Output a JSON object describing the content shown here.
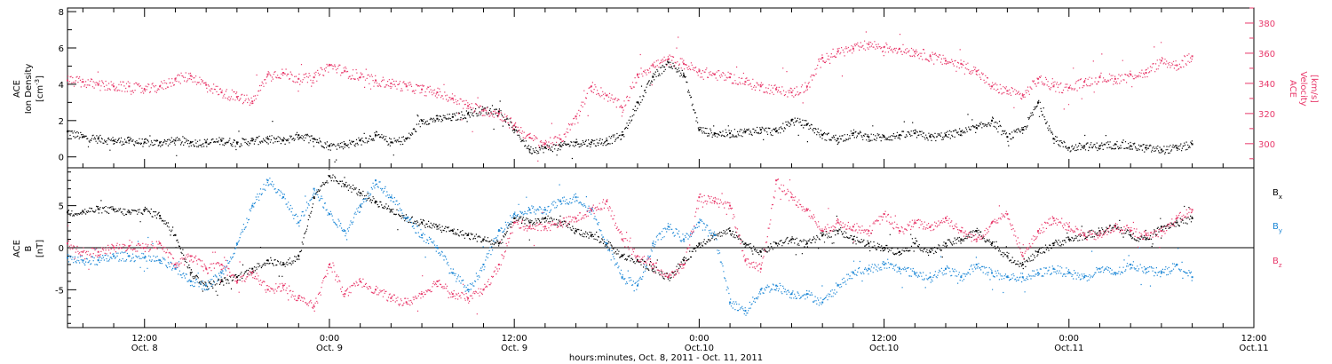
{
  "xlabel": "hours:minutes, Oct. 8, 2011 - Oct. 11, 2011",
  "x_ticks": [
    {
      "hour": 12,
      "line1": "12:00",
      "line2": "Oct. 8"
    },
    {
      "hour": 24,
      "line1": "0:00",
      "line2": "Oct. 9"
    },
    {
      "hour": 36,
      "line1": "12:00",
      "line2": "Oct. 9"
    },
    {
      "hour": 48,
      "line1": "0:00",
      "line2": "Oct.10"
    },
    {
      "hour": 60,
      "line1": "12:00",
      "line2": "Oct.10"
    },
    {
      "hour": 72,
      "line1": "0:00",
      "line2": "Oct.11"
    },
    {
      "hour": 84,
      "line1": "12:00",
      "line2": "Oct.11"
    }
  ],
  "colors": {
    "black": "#000000",
    "pink": "#e8386a",
    "blue": "#1a86d6"
  },
  "panels": {
    "top": {
      "left_label_line1": "ACE",
      "left_label_line2": "Ion Density",
      "left_unit": "[cm",
      "left_unit_sup": "-3",
      "left_unit_end": "]",
      "right_label_line1": "ACE",
      "right_label_line2": "Velocity",
      "right_unit": "[km/s]"
    },
    "bottom": {
      "left_label_line1": "ACE",
      "left_label_line2": "B",
      "left_unit": "[nT]",
      "legend": [
        {
          "name": "B",
          "sub": "x",
          "color": "#000000"
        },
        {
          "name": "B",
          "sub": "y",
          "color": "#1a86d6"
        },
        {
          "name": "B",
          "sub": "z",
          "color": "#e8386a"
        }
      ]
    }
  },
  "chart_data": [
    {
      "type": "scatter",
      "title": "",
      "xlabel": "hours:minutes, Oct. 8, 2011 - Oct. 11, 2011",
      "ylabel": "ACE Ion Density [cm-3]",
      "xlim": [
        7,
        84
      ],
      "ylim": [
        -0.6,
        8.2
      ],
      "y_ticks": [
        0,
        2,
        4,
        6,
        8
      ],
      "y2label": "ACE Velocity [km/s]",
      "y2lim": [
        284,
        390
      ],
      "y2_ticks": [
        300,
        320,
        340,
        360,
        380
      ],
      "series": [
        {
          "name": "",
          "axis": "left",
          "color": "#000000",
          "x": [
            7.0,
            8.0,
            9.0,
            10.0,
            11.0,
            12.0,
            13.0,
            14.0,
            15.0,
            16.0,
            17.0,
            18.0,
            19.0,
            20.0,
            21.0,
            22.0,
            23.0,
            24.0,
            25.0,
            26.0,
            27.0,
            28.0,
            29.0,
            30.0,
            31.0,
            32.0,
            33.0,
            34.0,
            35.0,
            36.0,
            37.0,
            38.0,
            39.0,
            40.0,
            41.0,
            42.0,
            43.0,
            44.0,
            45.0,
            46.0,
            47.0,
            48.0,
            49.0,
            50.0,
            51.0,
            52.0,
            53.0,
            54.0,
            55.0,
            56.0,
            57.0,
            58.0,
            59.0,
            60.0,
            61.0,
            62.0,
            63.0,
            64.0,
            65.0,
            66.0,
            67.0,
            68.0,
            69.0,
            70.0,
            71.0,
            72.0,
            73.0,
            74.0,
            75.0,
            76.0,
            77.0,
            78.0,
            79.0,
            80.0
          ],
          "y": [
            1.4,
            1.1,
            1.0,
            0.9,
            0.9,
            0.8,
            0.8,
            0.9,
            0.8,
            0.8,
            0.9,
            0.8,
            0.9,
            1.0,
            0.9,
            1.2,
            1.0,
            0.6,
            0.7,
            0.9,
            1.2,
            0.8,
            1.0,
            2.0,
            2.1,
            2.2,
            2.4,
            2.6,
            2.5,
            1.5,
            0.4,
            0.5,
            0.6,
            0.8,
            0.8,
            0.9,
            1.2,
            3.0,
            4.4,
            5.2,
            4.5,
            1.5,
            1.3,
            1.3,
            1.4,
            1.5,
            1.4,
            2.0,
            1.8,
            1.2,
            1.0,
            1.3,
            1.1,
            1.1,
            1.2,
            1.3,
            1.1,
            1.2,
            1.4,
            1.6,
            2.0,
            1.1,
            1.5,
            3.0,
            1.0,
            0.5,
            0.6,
            0.6,
            0.7,
            0.6,
            0.5,
            0.4,
            0.5,
            0.7
          ]
        },
        {
          "name": "",
          "axis": "right",
          "color": "#e8386a",
          "x": [
            7.0,
            8.0,
            9.0,
            10.0,
            11.0,
            12.0,
            13.0,
            14.0,
            15.0,
            16.0,
            17.0,
            18.0,
            19.0,
            20.0,
            21.0,
            22.0,
            23.0,
            24.0,
            25.0,
            26.0,
            27.0,
            28.0,
            29.0,
            30.0,
            31.0,
            32.0,
            33.0,
            34.0,
            35.0,
            36.0,
            37.0,
            38.0,
            39.0,
            40.0,
            41.0,
            42.0,
            43.0,
            44.0,
            45.0,
            46.0,
            47.0,
            48.0,
            49.0,
            50.0,
            51.0,
            52.0,
            53.0,
            54.0,
            55.0,
            56.0,
            57.0,
            58.0,
            59.0,
            60.0,
            61.0,
            62.0,
            63.0,
            64.0,
            65.0,
            66.0,
            67.0,
            68.0,
            69.0,
            70.0,
            71.0,
            72.0,
            73.0,
            74.0,
            75.0,
            76.0,
            77.0,
            78.0,
            79.0,
            80.0
          ],
          "y": [
            342,
            341,
            339,
            338,
            338,
            336,
            338,
            343,
            345,
            339,
            334,
            331,
            328,
            346,
            347,
            343,
            344,
            352,
            348,
            344,
            342,
            340,
            338,
            336,
            334,
            330,
            325,
            322,
            320,
            312,
            304,
            300,
            303,
            318,
            338,
            332,
            324,
            346,
            352,
            356,
            353,
            348,
            346,
            344,
            341,
            338,
            336,
            334,
            338,
            357,
            361,
            363,
            366,
            364,
            363,
            361,
            358,
            355,
            353,
            348,
            338,
            335,
            332,
            343,
            338,
            337,
            341,
            344,
            343,
            346,
            347,
            355,
            352,
            358
          ]
        }
      ]
    },
    {
      "type": "scatter",
      "title": "",
      "xlabel": "hours:minutes, Oct. 8, 2011 - Oct. 11, 2011",
      "ylabel": "ACE B [nT]",
      "xlim": [
        7,
        84
      ],
      "ylim": [
        -9.5,
        9.5
      ],
      "y_ticks": [
        -5,
        0,
        5
      ],
      "series": [
        {
          "name": "Bx",
          "color": "#000000",
          "x": [
            7.0,
            8.0,
            9.0,
            10.0,
            11.0,
            12.0,
            13.0,
            14.0,
            15.0,
            16.0,
            17.0,
            18.0,
            19.0,
            20.0,
            21.0,
            22.0,
            23.0,
            24.0,
            25.0,
            26.0,
            27.0,
            28.0,
            29.0,
            30.0,
            31.0,
            32.0,
            33.0,
            34.0,
            35.0,
            36.0,
            37.0,
            38.0,
            39.0,
            40.0,
            41.0,
            42.0,
            43.0,
            44.0,
            45.0,
            46.0,
            47.0,
            48.0,
            49.0,
            50.0,
            51.0,
            52.0,
            53.0,
            54.0,
            55.0,
            56.0,
            57.0,
            58.0,
            59.0,
            60.0,
            61.0,
            62.0,
            63.0,
            64.0,
            65.0,
            66.0,
            67.0,
            68.0,
            69.0,
            70.0,
            71.0,
            72.0,
            73.0,
            74.0,
            75.0,
            76.0,
            77.0,
            78.0,
            79.0,
            80.0
          ],
          "y": [
            4.2,
            4.3,
            4.6,
            4.5,
            4.2,
            4.5,
            3.8,
            1.5,
            -3.0,
            -4.5,
            -4.0,
            -3.5,
            -2.5,
            -1.5,
            -2.0,
            -1.0,
            6.0,
            8.5,
            7.5,
            6.5,
            5.5,
            4.5,
            3.5,
            3.0,
            2.5,
            2.0,
            1.5,
            1.0,
            0.5,
            3.5,
            3.0,
            3.5,
            3.0,
            2.0,
            1.5,
            0.5,
            -1.0,
            -1.5,
            -2.5,
            -3.5,
            -1.5,
            0.5,
            1.5,
            2.0,
            0.5,
            -0.5,
            0.5,
            1.0,
            0.5,
            1.5,
            2.0,
            1.0,
            0.5,
            0.0,
            -0.5,
            0.5,
            -0.5,
            0.5,
            1.0,
            2.0,
            0.5,
            -1.0,
            -2.0,
            -0.5,
            0.5,
            1.0,
            1.5,
            2.0,
            2.5,
            1.5,
            1.0,
            2.5,
            3.0,
            3.5
          ]
        },
        {
          "name": "By",
          "color": "#1a86d6",
          "x": [
            7.0,
            8.0,
            9.0,
            10.0,
            11.0,
            12.0,
            13.0,
            14.0,
            15.0,
            16.0,
            17.0,
            18.0,
            19.0,
            20.0,
            21.0,
            22.0,
            23.0,
            24.0,
            25.0,
            26.0,
            27.0,
            28.0,
            29.0,
            30.0,
            31.0,
            32.0,
            33.0,
            34.0,
            35.0,
            36.0,
            37.0,
            38.0,
            39.0,
            40.0,
            41.0,
            42.0,
            43.0,
            44.0,
            45.0,
            46.0,
            47.0,
            48.0,
            49.0,
            50.0,
            51.0,
            52.0,
            53.0,
            54.0,
            55.0,
            56.0,
            57.0,
            58.0,
            59.0,
            60.0,
            61.0,
            62.0,
            63.0,
            64.0,
            65.0,
            66.0,
            67.0,
            68.0,
            69.0,
            70.0,
            71.0,
            72.0,
            73.0,
            74.0,
            75.0,
            76.0,
            77.0,
            78.0,
            79.0,
            80.0
          ],
          "y": [
            -1.2,
            -1.5,
            -1.5,
            -1.0,
            -1.0,
            -1.2,
            -1.5,
            -2.5,
            -4.0,
            -4.5,
            -3.0,
            0.5,
            5.0,
            8.0,
            6.0,
            3.0,
            7.0,
            4.0,
            2.0,
            5.0,
            8.0,
            6.0,
            3.5,
            1.5,
            0.0,
            -3.0,
            -5.0,
            -2.0,
            2.0,
            4.0,
            4.5,
            4.5,
            5.5,
            6.0,
            4.5,
            0.5,
            -3.5,
            -4.5,
            0.5,
            2.5,
            1.0,
            3.0,
            1.5,
            -6.5,
            -7.5,
            -5.0,
            -4.5,
            -5.5,
            -5.5,
            -6.5,
            -4.5,
            -3.0,
            -2.5,
            -2.0,
            -2.5,
            -3.0,
            -3.5,
            -2.5,
            -3.5,
            -2.0,
            -3.0,
            -3.5,
            -3.5,
            -3.0,
            -2.5,
            -3.0,
            -3.5,
            -2.5,
            -3.0,
            -2.0,
            -2.5,
            -3.0,
            -2.0,
            -3.5
          ]
        },
        {
          "name": "Bz",
          "color": "#e8386a",
          "x": [
            7.0,
            8.0,
            9.0,
            10.0,
            11.0,
            12.0,
            13.0,
            14.0,
            15.0,
            16.0,
            17.0,
            18.0,
            19.0,
            20.0,
            21.0,
            22.0,
            23.0,
            24.0,
            25.0,
            26.0,
            27.0,
            28.0,
            29.0,
            30.0,
            31.0,
            32.0,
            33.0,
            34.0,
            35.0,
            36.0,
            37.0,
            38.0,
            39.0,
            40.0,
            41.0,
            42.0,
            43.0,
            44.0,
            45.0,
            46.0,
            47.0,
            48.0,
            49.0,
            50.0,
            51.0,
            52.0,
            53.0,
            54.0,
            55.0,
            56.0,
            57.0,
            58.0,
            59.0,
            60.0,
            61.0,
            62.0,
            63.0,
            64.0,
            65.0,
            66.0,
            67.0,
            68.0,
            69.0,
            70.0,
            71.0,
            72.0,
            73.0,
            74.0,
            75.0,
            76.0,
            77.0,
            78.0,
            79.0,
            80.0
          ],
          "y": [
            0.5,
            -0.5,
            -0.5,
            0.0,
            0.2,
            0.0,
            0.5,
            -2.0,
            -1.0,
            -2.5,
            -2.0,
            -4.0,
            -3.0,
            -5.0,
            -4.5,
            -6.0,
            -7.0,
            -2.0,
            -5.5,
            -4.0,
            -5.0,
            -6.0,
            -6.5,
            -5.5,
            -4.0,
            -5.5,
            -6.0,
            -5.0,
            -2.0,
            3.0,
            2.5,
            2.5,
            3.0,
            3.5,
            4.5,
            5.5,
            1.0,
            -1.0,
            -2.0,
            -3.5,
            -2.0,
            6.0,
            5.5,
            5.0,
            -1.5,
            -2.5,
            8.0,
            6.0,
            4.5,
            2.0,
            3.0,
            2.5,
            2.0,
            4.0,
            2.0,
            3.0,
            2.5,
            3.5,
            2.0,
            1.0,
            3.0,
            4.0,
            -1.0,
            2.0,
            3.5,
            2.5,
            1.5,
            1.5,
            2.5,
            2.0,
            1.5,
            2.0,
            3.5,
            4.5
          ]
        }
      ]
    }
  ]
}
